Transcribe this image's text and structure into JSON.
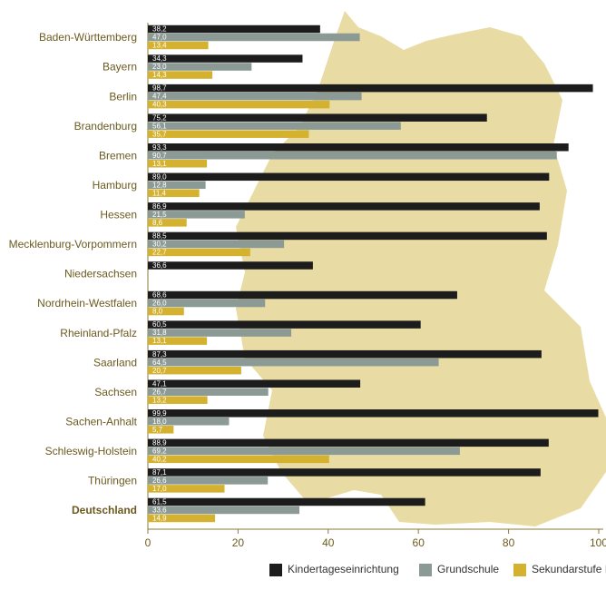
{
  "chart_data": {
    "type": "bar",
    "orientation": "horizontal",
    "categories": [
      "Baden-Württemberg",
      "Bayern",
      "Berlin",
      "Brandenburg",
      "Bremen",
      "Hamburg",
      "Hessen",
      "Mecklenburg-Vorpommern",
      "Niedersachsen",
      "Nordrhein-Westfalen",
      "Rheinland-Pfalz",
      "Saarland",
      "Sachsen",
      "Sachen-Anhalt",
      "Schleswig-Holstein",
      "Thüringen",
      "Deutschland"
    ],
    "series": [
      {
        "name": "Kindertageseinrichtung",
        "color": "#1c1c1c",
        "values": [
          38.2,
          34.3,
          98.7,
          75.2,
          93.3,
          89.0,
          86.9,
          88.5,
          36.6,
          68.6,
          60.5,
          87.3,
          47.1,
          99.9,
          88.9,
          87.1,
          61.5
        ],
        "value_labels": [
          "38,2",
          "34,3",
          "98,7",
          "75,2",
          "93,3",
          "89,0",
          "86,9",
          "88,5",
          "36,6",
          "68,6",
          "60,5",
          "87,3",
          "47,1",
          "99,9",
          "88,9",
          "87,1",
          "61,5"
        ]
      },
      {
        "name": "Grundschule",
        "color": "#8c9a96",
        "values": [
          47.0,
          23.0,
          47.4,
          56.1,
          90.7,
          12.8,
          21.5,
          30.2,
          null,
          26.0,
          31.8,
          64.5,
          26.7,
          18.0,
          69.2,
          26.6,
          33.6
        ],
        "value_labels": [
          "47,0",
          "23,0",
          "47,4",
          "56,1",
          "90,7",
          "12,8",
          "21,5",
          "30,2",
          null,
          "26,0",
          "31,8",
          "64,5",
          "26,7",
          "18,0",
          "69,2",
          "26,6",
          "33,6"
        ]
      },
      {
        "name": "Sekundarstufe I",
        "color": "#d4b12e",
        "values": [
          13.4,
          14.3,
          40.3,
          35.7,
          13.1,
          11.4,
          8.6,
          22.7,
          null,
          8.0,
          13.1,
          20.7,
          13.2,
          5.7,
          40.2,
          17.0,
          14.9
        ],
        "value_labels": [
          "13,4",
          "14,3",
          "40,3",
          "35,7",
          "13,1",
          "11,4",
          "8,6",
          "22,7",
          null,
          "8,0",
          "13,1",
          "20,7",
          "13,2",
          "5,7",
          "40,2",
          "17,0",
          "14,9"
        ]
      }
    ],
    "xlim": [
      0,
      100
    ],
    "xticks": [
      0,
      20,
      40,
      60,
      80,
      100
    ],
    "legend": "bottom-right"
  }
}
